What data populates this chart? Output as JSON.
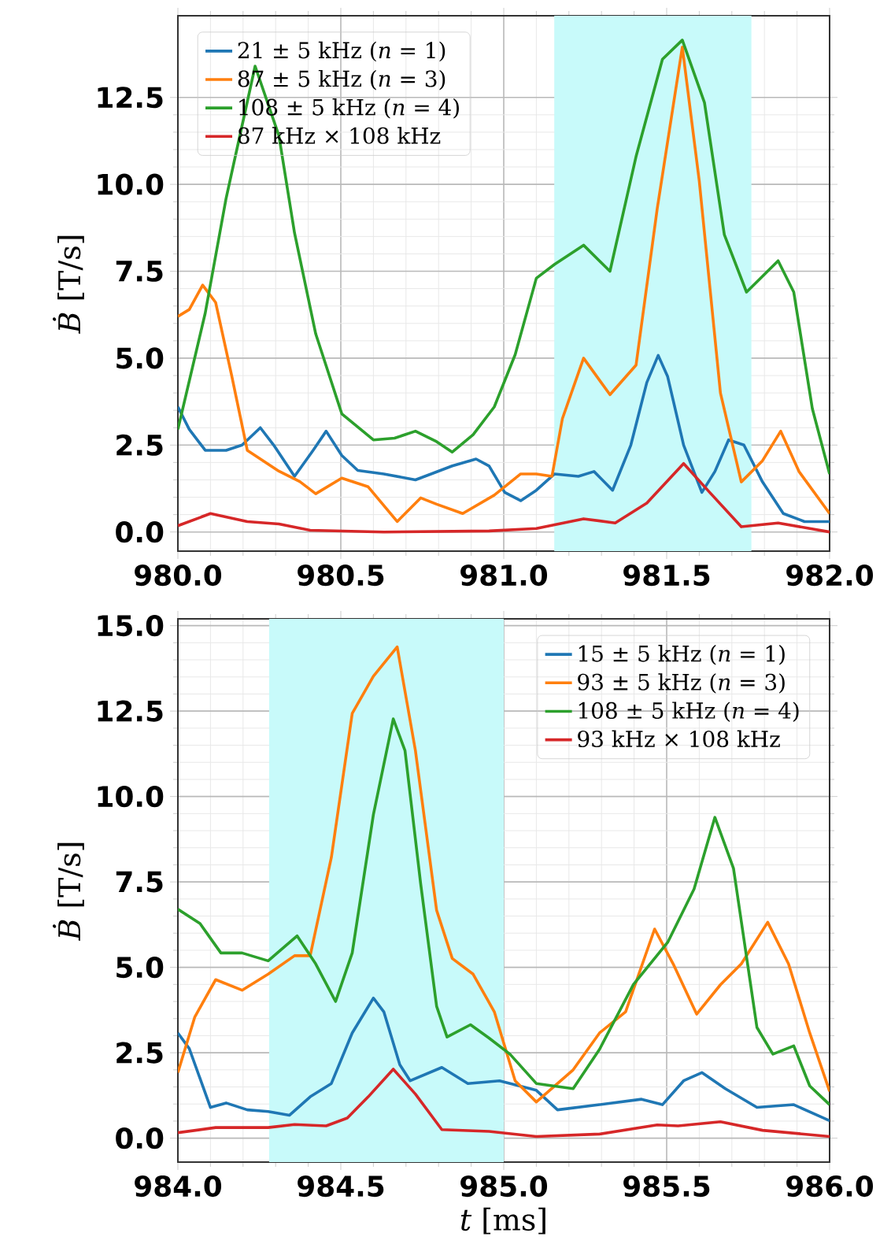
{
  "chart_data": [
    {
      "type": "line",
      "ylabel": "*Ḃ* [T/s]",
      "xlim": [
        980,
        982
      ],
      "ylim": [
        -0.55,
        14.85
      ],
      "xticks": [
        {
          "value": 980,
          "label": "980.0"
        },
        980.5,
        {
          "value": 981,
          "label": "981.0"
        },
        981.5,
        {
          "value": 982,
          "label": "982.0"
        }
      ],
      "yticks": [
        {
          "value": 0,
          "label": "0.0"
        },
        2.5,
        {
          "value": 5,
          "label": "5.0"
        },
        7.5,
        {
          "value": 10,
          "label": "10.0"
        },
        12.5
      ],
      "grid": true,
      "legend": "top left",
      "bands": [
        {
          "axis": "x",
          "from": 981.155,
          "to": 981.76,
          "color": "#c8fafa"
        }
      ],
      "series": [
        {
          "name": "21 ± 5 kHz (*n* = 1)",
          "color": "#1f77b4",
          "x": [
            980.0,
            980.035,
            980.084,
            980.148,
            980.197,
            980.253,
            980.294,
            980.358,
            980.415,
            980.455,
            980.503,
            980.552,
            980.632,
            980.729,
            980.777,
            980.842,
            980.915,
            980.955,
            981.003,
            981.052,
            981.1,
            981.156,
            981.229,
            981.277,
            981.334,
            981.39,
            981.439,
            981.474,
            981.503,
            981.552,
            981.608,
            981.648,
            981.69,
            981.737,
            981.794,
            981.858,
            981.923,
            982.0
          ],
          "values": [
            3.6,
            2.95,
            2.35,
            2.35,
            2.5,
            3.0,
            2.5,
            1.6,
            2.35,
            2.9,
            2.2,
            1.77,
            1.67,
            1.5,
            1.67,
            1.9,
            2.1,
            1.9,
            1.14,
            0.9,
            1.2,
            1.67,
            1.6,
            1.74,
            1.2,
            2.5,
            4.3,
            5.08,
            4.47,
            2.5,
            1.14,
            1.74,
            2.65,
            2.5,
            1.44,
            0.53,
            0.3,
            0.3
          ]
        },
        {
          "name": "87 ± 5 kHz (*n* = 3)",
          "color": "#ff7f0e",
          "x": [
            980.0,
            980.035,
            980.076,
            980.116,
            980.165,
            980.213,
            980.31,
            980.374,
            980.423,
            980.503,
            980.584,
            980.673,
            980.745,
            980.794,
            980.874,
            980.971,
            981.052,
            981.1,
            981.148,
            981.18,
            981.245,
            981.326,
            981.406,
            981.471,
            981.548,
            981.6,
            981.665,
            981.729,
            981.794,
            981.85,
            981.906,
            982.0
          ],
          "values": [
            6.2,
            6.4,
            7.1,
            6.6,
            4.5,
            2.35,
            1.75,
            1.45,
            1.1,
            1.55,
            1.3,
            0.3,
            0.98,
            0.8,
            0.53,
            1.06,
            1.67,
            1.67,
            1.6,
            3.26,
            5.0,
            3.95,
            4.8,
            9.3,
            13.95,
            10.1,
            4.0,
            1.44,
            2.05,
            2.9,
            1.74,
            0.53
          ]
        },
        {
          "name": "108 ± 5 kHz (*n* = 4)",
          "color": "#2ca02c",
          "x": [
            980.0,
            980.084,
            980.148,
            980.237,
            980.31,
            980.358,
            980.423,
            980.503,
            980.6,
            980.665,
            980.729,
            980.794,
            980.842,
            980.906,
            980.971,
            981.035,
            981.1,
            981.156,
            981.245,
            981.326,
            981.406,
            981.487,
            981.548,
            981.616,
            981.677,
            981.745,
            981.842,
            981.89,
            981.947,
            982.0
          ],
          "values": [
            2.95,
            6.3,
            9.6,
            13.4,
            11.4,
            8.6,
            5.7,
            3.4,
            2.65,
            2.7,
            2.9,
            2.6,
            2.3,
            2.8,
            3.6,
            5.1,
            7.3,
            7.7,
            8.25,
            7.5,
            10.8,
            13.6,
            14.15,
            12.35,
            8.55,
            6.9,
            7.8,
            6.9,
            3.55,
            1.67
          ]
        },
        {
          "name": "87 kHz × 108 kHz",
          "color": "#d62728",
          "x": [
            980.0,
            980.1,
            980.213,
            980.31,
            980.406,
            980.632,
            980.955,
            981.1,
            981.245,
            981.342,
            981.439,
            981.552,
            981.632,
            981.729,
            981.842,
            982.0
          ],
          "values": [
            0.18,
            0.53,
            0.3,
            0.23,
            0.05,
            0,
            0.03,
            0.1,
            0.38,
            0.26,
            0.83,
            1.97,
            1.14,
            0.15,
            0.26,
            0
          ]
        }
      ]
    },
    {
      "type": "line",
      "xlabel": "*t* [ms]",
      "ylabel": "*Ḃ* [T/s]",
      "xlim": [
        984,
        986
      ],
      "ylim": [
        -0.7,
        15.2
      ],
      "xticks": [
        {
          "value": 984,
          "label": "984.0"
        },
        984.5,
        {
          "value": 985,
          "label": "985.0"
        },
        985.5,
        {
          "value": 986,
          "label": "986.0"
        }
      ],
      "yticks": [
        {
          "value": 0,
          "label": "0.0"
        },
        2.5,
        {
          "value": 5,
          "label": "5.0"
        },
        7.5,
        {
          "value": 10,
          "label": "10.0"
        },
        12.5,
        {
          "value": 15,
          "label": "15.0"
        }
      ],
      "grid": true,
      "legend": "top right",
      "bands": [
        {
          "axis": "x",
          "from": 984.28,
          "to": 985.0,
          "color": "#c8fafa"
        }
      ],
      "series": [
        {
          "name": "15 ± 5 kHz (*n* = 1)",
          "color": "#1f77b4",
          "x": [
            984.0,
            984.035,
            984.1,
            984.148,
            984.213,
            984.277,
            984.342,
            984.406,
            984.471,
            984.535,
            984.6,
            984.632,
            984.681,
            984.713,
            984.81,
            984.89,
            984.987,
            985.1,
            985.165,
            985.294,
            985.423,
            985.487,
            985.552,
            985.608,
            985.68,
            985.777,
            985.89,
            986.0
          ],
          "values": [
            3.08,
            2.62,
            0.9,
            1.03,
            0.83,
            0.78,
            0.67,
            1.21,
            1.6,
            3.08,
            4.1,
            3.7,
            2.15,
            1.68,
            2.07,
            1.6,
            1.68,
            1.4,
            0.83,
            0.98,
            1.14,
            0.98,
            1.68,
            1.92,
            1.45,
            0.9,
            0.98,
            0.51
          ]
        },
        {
          "name": "93 ± 5 kHz (*n* = 3)",
          "color": "#ff7f0e",
          "x": [
            984.0,
            984.052,
            984.116,
            984.197,
            984.277,
            984.358,
            984.406,
            984.471,
            984.535,
            984.6,
            984.673,
            984.729,
            984.794,
            984.842,
            984.906,
            984.971,
            985.035,
            985.1,
            985.213,
            985.294,
            985.374,
            985.463,
            985.52,
            985.592,
            985.665,
            985.729,
            985.81,
            985.874,
            985.939,
            986.0
          ],
          "values": [
            1.92,
            3.55,
            4.64,
            4.33,
            4.8,
            5.34,
            5.34,
            8.22,
            12.43,
            13.52,
            14.38,
            11.34,
            6.67,
            5.26,
            4.8,
            3.7,
            1.68,
            1.06,
            2.0,
            3.08,
            3.7,
            6.12,
            5.1,
            3.63,
            4.49,
            5.1,
            6.32,
            5.1,
            3.08,
            1.37
          ]
        },
        {
          "name": "108 ± 5 kHz (*n* = 4)",
          "color": "#2ca02c",
          "x": [
            984.0,
            984.068,
            984.132,
            984.197,
            984.277,
            984.366,
            984.423,
            984.484,
            984.535,
            984.6,
            984.661,
            984.697,
            984.745,
            984.794,
            984.826,
            984.898,
            984.955,
            985.019,
            985.1,
            985.213,
            985.294,
            985.398,
            985.503,
            985.584,
            985.648,
            985.705,
            985.777,
            985.826,
            985.89,
            985.939,
            986.0
          ],
          "values": [
            6.7,
            6.28,
            5.42,
            5.42,
            5.19,
            5.92,
            5.1,
            4.0,
            5.42,
            9.47,
            12.27,
            11.34,
            7.45,
            3.86,
            2.96,
            3.32,
            2.93,
            2.46,
            1.6,
            1.45,
            2.6,
            4.5,
            5.73,
            7.29,
            9.39,
            7.9,
            3.24,
            2.46,
            2.7,
            1.53,
            0.98
          ]
        },
        {
          "name": "93 kHz × 108 kHz",
          "color": "#d62728",
          "x": [
            984.0,
            984.116,
            984.277,
            984.358,
            984.455,
            984.52,
            984.584,
            984.661,
            984.729,
            984.81,
            984.955,
            985.1,
            985.294,
            985.471,
            985.535,
            985.665,
            985.794,
            986.0
          ],
          "values": [
            0.16,
            0.31,
            0.31,
            0.4,
            0.36,
            0.59,
            1.21,
            2.02,
            1.29,
            0.25,
            0.2,
            0.05,
            0.12,
            0.39,
            0.36,
            0.48,
            0.23,
            0.05
          ]
        }
      ]
    }
  ]
}
